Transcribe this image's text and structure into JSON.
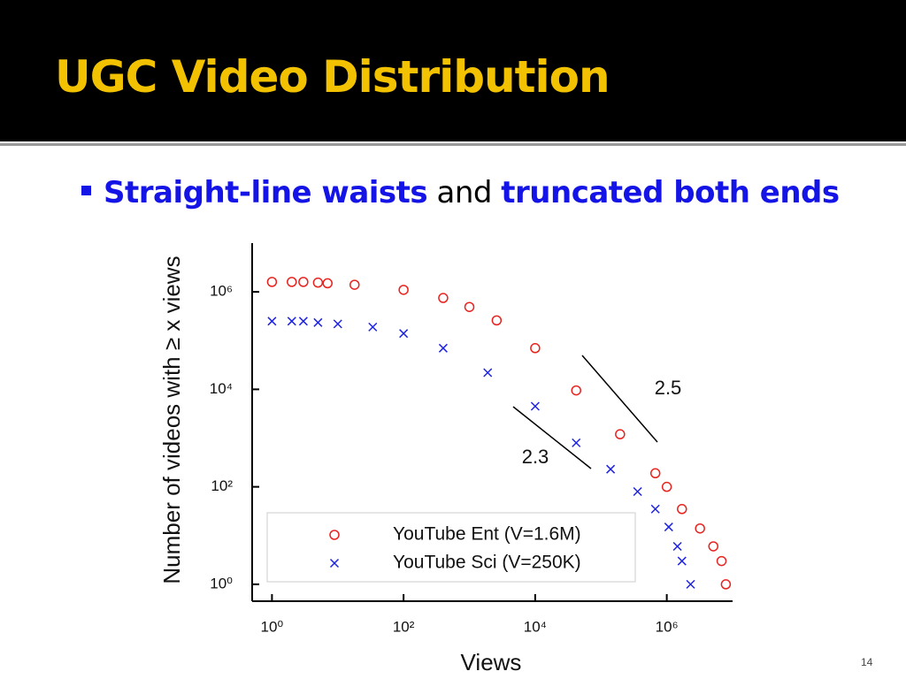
{
  "slide": {
    "title": "UGC Video Distribution",
    "bullet": {
      "part1": "Straight-line waists",
      "part2": "and",
      "part3": "truncated both ends"
    },
    "page_number": "14"
  },
  "chart_data": {
    "type": "scatter",
    "xlabel": "Views",
    "ylabel": "Number of videos with ≥ x views",
    "log_x": true,
    "log_y": true,
    "legend": "lower left",
    "xlim": [
      0.5,
      10000000
    ],
    "ylim": [
      0.45,
      10000000
    ],
    "xticks": [
      {
        "value": 1,
        "label": "10⁰"
      },
      {
        "value": 100,
        "label": "10²"
      },
      {
        "value": 10000,
        "label": "10⁴"
      },
      {
        "value": 1000000,
        "label": "10⁶"
      }
    ],
    "yticks": [
      {
        "value": 1,
        "label": "10⁰"
      },
      {
        "value": 100,
        "label": "10²"
      },
      {
        "value": 10000,
        "label": "10⁴"
      },
      {
        "value": 1000000,
        "label": "10⁶"
      }
    ],
    "annotations": [
      "2.5",
      "2.3"
    ],
    "series": [
      {
        "name": "YouTube Ent (V=1.6M)",
        "color": "#e8231f",
        "marker": "o",
        "x": [
          1,
          2,
          3,
          5,
          7,
          18,
          100,
          400,
          1000,
          2600,
          10000,
          42000,
          195000,
          670000,
          1000000,
          1700000,
          3200000,
          5100000,
          6800000,
          7900000
        ],
        "values": [
          1600000,
          1600000,
          1600000,
          1550000,
          1500000,
          1400000,
          1100000,
          750000,
          490000,
          260000,
          70000,
          9500,
          1200,
          190,
          100,
          35,
          14,
          6,
          3,
          1
        ]
      },
      {
        "name": "YouTube Sci (V=250K)",
        "color": "#1f24e0",
        "marker": "x",
        "x": [
          1,
          2,
          3,
          5,
          10,
          34,
          100,
          400,
          1900,
          10000,
          42000,
          140000,
          360000,
          670000,
          1070000,
          1450000,
          1700000,
          2300000
        ],
        "values": [
          250000,
          250000,
          250000,
          235000,
          220000,
          190000,
          140000,
          70000,
          22000,
          4500,
          800,
          230,
          80,
          35,
          15,
          6,
          3,
          1
        ]
      }
    ]
  }
}
